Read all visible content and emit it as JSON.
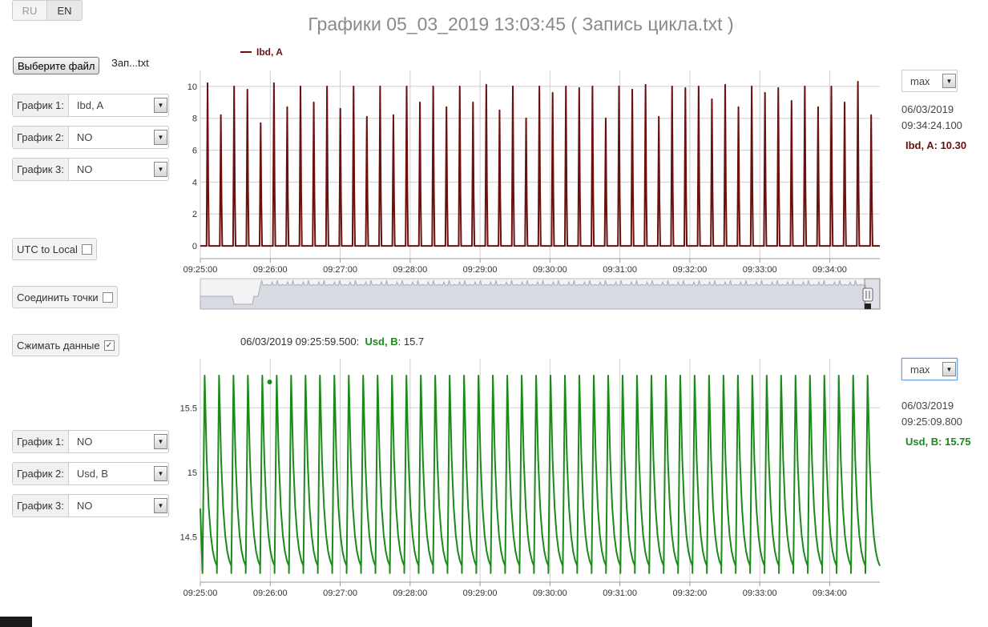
{
  "language": {
    "ru": "RU",
    "en": "EN"
  },
  "title": "Графики 05_03_2019 13:03:45 ( Запись цикла.txt )",
  "file": {
    "button": "Выберите файл",
    "name": "Зап...txt"
  },
  "top_selects": [
    {
      "label": "График 1:",
      "value": "Ibd, A"
    },
    {
      "label": "График 2:",
      "value": "NO"
    },
    {
      "label": "График 3:",
      "value": "NO"
    }
  ],
  "bottom_selects": [
    {
      "label": "График 1:",
      "value": "NO"
    },
    {
      "label": "График 2:",
      "value": "Usd, B"
    },
    {
      "label": "График 3:",
      "value": "NO"
    }
  ],
  "options": {
    "utc_to_local": {
      "label": "UTC to Local",
      "checked": false
    },
    "connect_points": {
      "label": "Соединить точки",
      "checked": false
    },
    "compress_data": {
      "label": "Сжимать данные",
      "checked": true
    }
  },
  "top_panel": {
    "zoom": "max",
    "date": "06/03/2019",
    "time": "09:34:24.100",
    "value_label": "Ibd, A: 10.30",
    "color": "#6b0f0f"
  },
  "bottom_panel": {
    "zoom": "max",
    "date": "06/03/2019",
    "time": "09:25:09.800",
    "value_label": "Usd, B: 15.75",
    "color": "#1a8a1a",
    "hover_time": "06/03/2019 09:25:59.500:",
    "hover_series": "Usd, B",
    "hover_value": ": 15.7"
  },
  "chart_data": [
    {
      "type": "line",
      "legend": "Ibd, A",
      "series": [
        {
          "name": "Ibd, A",
          "color": "#6b0f0f"
        }
      ],
      "x_ticks": [
        "09:25:00",
        "09:26:00",
        "09:27:00",
        "09:28:00",
        "09:29:00",
        "09:30:00",
        "09:31:00",
        "09:32:00",
        "09:33:00",
        "09:34:00"
      ],
      "y_ticks": [
        "0",
        "2",
        "4",
        "6",
        "8",
        "10"
      ],
      "xlim": [
        "09:25:00",
        "09:34:43"
      ],
      "ylim": [
        -0.8,
        11
      ],
      "grid": true,
      "pulse_peaks": [
        10.2,
        8.2,
        10.0,
        9.8,
        7.7,
        10.2,
        8.7,
        10.0,
        9.0,
        10.0,
        8.6,
        10.0,
        8.1,
        10.0,
        8.2,
        10.0,
        9.0,
        10.0,
        8.7,
        10.0,
        9.0,
        10.1,
        8.5,
        10.0,
        8.0,
        10.0,
        9.6,
        10.0,
        9.9,
        10.0,
        8.0,
        10.0,
        9.8,
        10.1,
        8.1,
        10.0,
        9.9,
        10.0,
        9.2,
        10.1,
        8.7,
        10.0,
        9.6,
        9.9,
        9.1,
        10.0,
        8.7,
        10.0,
        9.0,
        10.3,
        8.2
      ]
    },
    {
      "type": "line",
      "legend": "Usd, B",
      "series": [
        {
          "name": "Usd, B",
          "color": "#1a8a1a"
        }
      ],
      "x_ticks": [
        "09:25:00",
        "09:26:00",
        "09:27:00",
        "09:28:00",
        "09:29:00",
        "09:30:00",
        "09:31:00",
        "09:32:00",
        "09:33:00",
        "09:34:00"
      ],
      "y_ticks": [
        "14.5",
        "15",
        "15.5"
      ],
      "xlim": [
        "09:25:00",
        "09:34:43"
      ],
      "ylim": [
        14.15,
        15.88
      ],
      "grid": true,
      "cycle_count": 47,
      "cycle_max": 15.75,
      "cycle_min": 14.22,
      "hover_point": {
        "time": "09:25:59.500",
        "value": 15.7
      }
    }
  ]
}
